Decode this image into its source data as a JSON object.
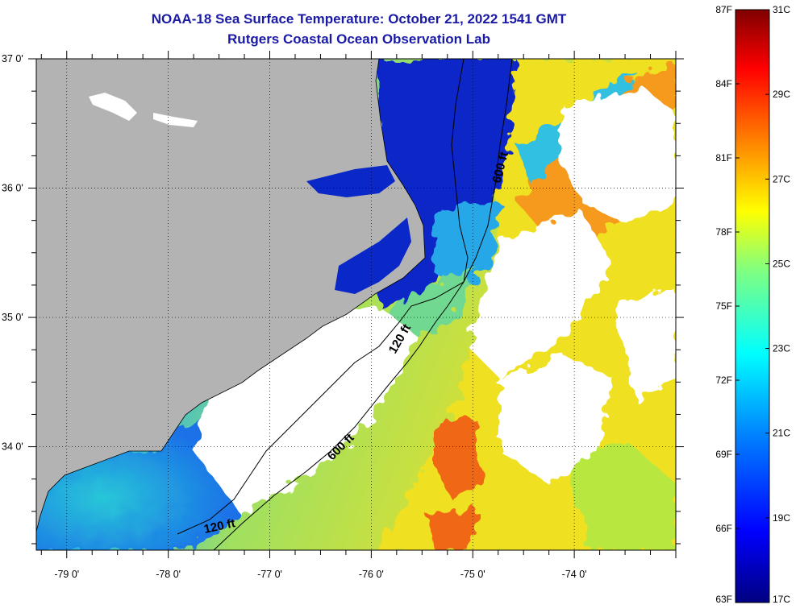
{
  "title": {
    "line1": "NOAA-18 Sea Surface Temperature:  October 21, 2022 1541 GMT",
    "line2": "Rutgers Coastal Ocean Observation Lab"
  },
  "map": {
    "lon_labels": [
      "-79 0'",
      "-78 0'",
      "-77 0'",
      "-76 0'",
      "-75 0'",
      "-74 0'"
    ],
    "lat_labels": [
      "37 0'",
      "36 0'",
      "35 0'",
      "34 0'"
    ],
    "lon_range": [
      -79.3,
      -73.0
    ],
    "lat_range": [
      33.2,
      37.0
    ],
    "contours": [
      "600 ft",
      "120 ft",
      "600 ft",
      "120 ft"
    ],
    "colors": {
      "land": "#b3b3b3",
      "cloud": "#ffffff",
      "cold_water": "#0a28c8",
      "warm_water": "#f0e020"
    }
  },
  "color_scale": {
    "range_c": [
      17,
      31
    ],
    "range_f": [
      63,
      87
    ],
    "celsius_labels": [
      "31C",
      "29C",
      "27C",
      "25C",
      "23C",
      "21C",
      "19C",
      "17C"
    ],
    "fahrenheit_labels": [
      "87F",
      "84F",
      "81F",
      "78F",
      "75F",
      "72F",
      "69F",
      "66F",
      "63F"
    ],
    "colors": [
      "#000080",
      "#0000ff",
      "#0080ff",
      "#00ffff",
      "#80ff80",
      "#ffff00",
      "#ff8000",
      "#ff0000",
      "#800000"
    ]
  }
}
